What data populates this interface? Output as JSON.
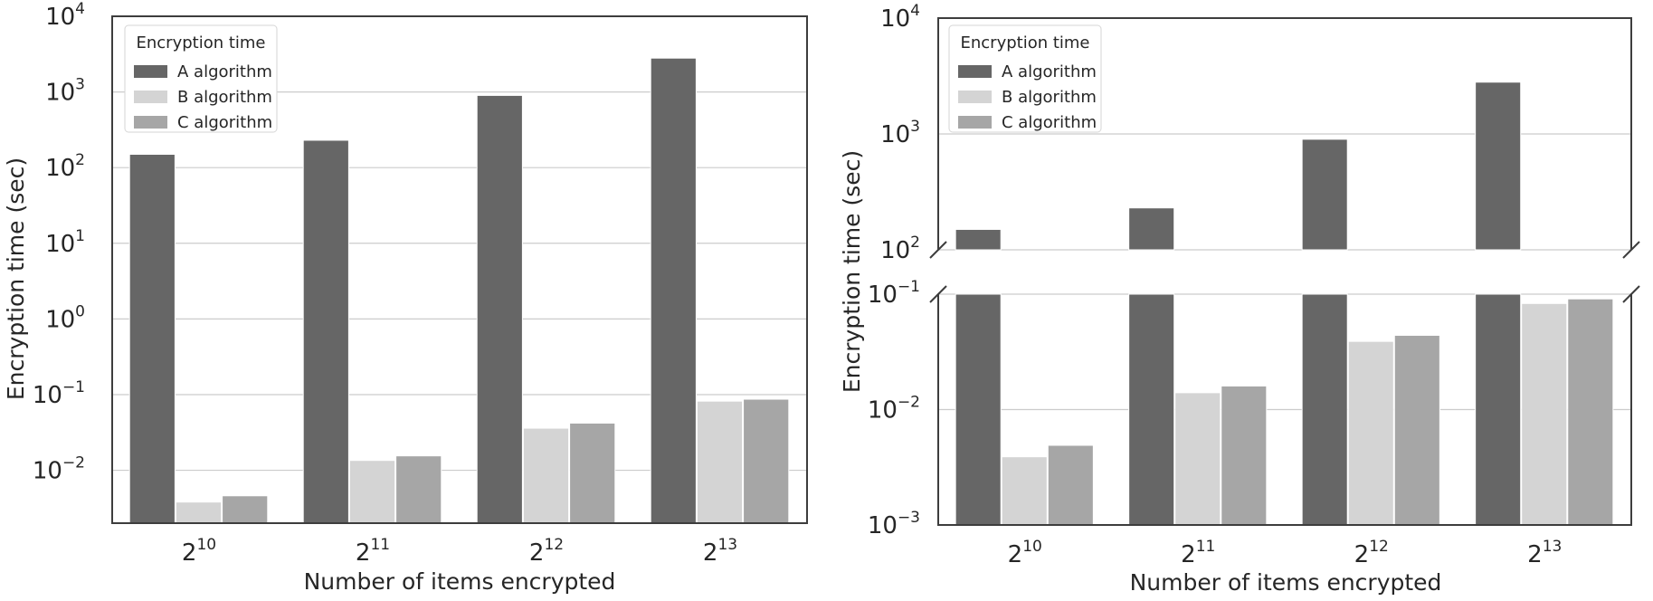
{
  "chart_data": [
    {
      "type": "bar",
      "scale": "log",
      "ylim": [
        0.002,
        10000
      ],
      "categories": [
        "2^10",
        "2^11",
        "2^12",
        "2^13"
      ],
      "category_base": "2",
      "category_exponents": [
        "10",
        "11",
        "12",
        "13"
      ],
      "xlabel": "Number of items encrypted",
      "ylabel": "Encryption time (sec)",
      "yticks": [
        {
          "base": "10",
          "exp": "4",
          "value": 10000
        },
        {
          "base": "10",
          "exp": "3",
          "value": 1000
        },
        {
          "base": "10",
          "exp": "2",
          "value": 100
        },
        {
          "base": "10",
          "exp": "1",
          "value": 10
        },
        {
          "base": "10",
          "exp": "0",
          "value": 1
        },
        {
          "base": "10",
          "exp": "−1",
          "value": 0.1
        },
        {
          "base": "10",
          "exp": "−2",
          "value": 0.01
        }
      ],
      "legend": {
        "title": "Encryption time",
        "position": "top-left"
      },
      "grid": "horizontal",
      "series": [
        {
          "name": "A algorithm",
          "color": "#666666",
          "values": [
            150,
            230,
            900,
            2800
          ]
        },
        {
          "name": "B algorithm",
          "color": "#d4d4d4",
          "values": [
            0.0038,
            0.0135,
            0.036,
            0.082
          ]
        },
        {
          "name": "C algorithm",
          "color": "#a6a6a6",
          "values": [
            0.0046,
            0.0155,
            0.042,
            0.087
          ]
        }
      ]
    },
    {
      "type": "bar",
      "scale": "log",
      "broken_axis": true,
      "ylim_upper": [
        100,
        10000
      ],
      "ylim_lower": [
        0.001,
        0.1
      ],
      "categories": [
        "2^10",
        "2^11",
        "2^12",
        "2^13"
      ],
      "category_base": "2",
      "category_exponents": [
        "10",
        "11",
        "12",
        "13"
      ],
      "xlabel": "Number of items encrypted",
      "ylabel": "Encryption time (sec)",
      "yticks_upper": [
        {
          "base": "10",
          "exp": "4",
          "value": 10000
        },
        {
          "base": "10",
          "exp": "3",
          "value": 1000
        },
        {
          "base": "10",
          "exp": "2",
          "value": 100
        }
      ],
      "yticks_lower": [
        {
          "base": "10",
          "exp": "−1",
          "value": 0.1
        },
        {
          "base": "10",
          "exp": "−2",
          "value": 0.01
        },
        {
          "base": "10",
          "exp": "−3",
          "value": 0.001
        }
      ],
      "legend": {
        "title": "Encryption time",
        "position": "top-left"
      },
      "grid": "horizontal",
      "series": [
        {
          "name": "A algorithm",
          "color": "#666666",
          "values": [
            150,
            230,
            900,
            2800
          ]
        },
        {
          "name": "B algorithm",
          "color": "#d4d4d4",
          "values": [
            0.0039,
            0.014,
            0.039,
            0.083
          ]
        },
        {
          "name": "C algorithm",
          "color": "#a6a6a6",
          "values": [
            0.0049,
            0.016,
            0.044,
            0.091
          ]
        }
      ]
    }
  ]
}
